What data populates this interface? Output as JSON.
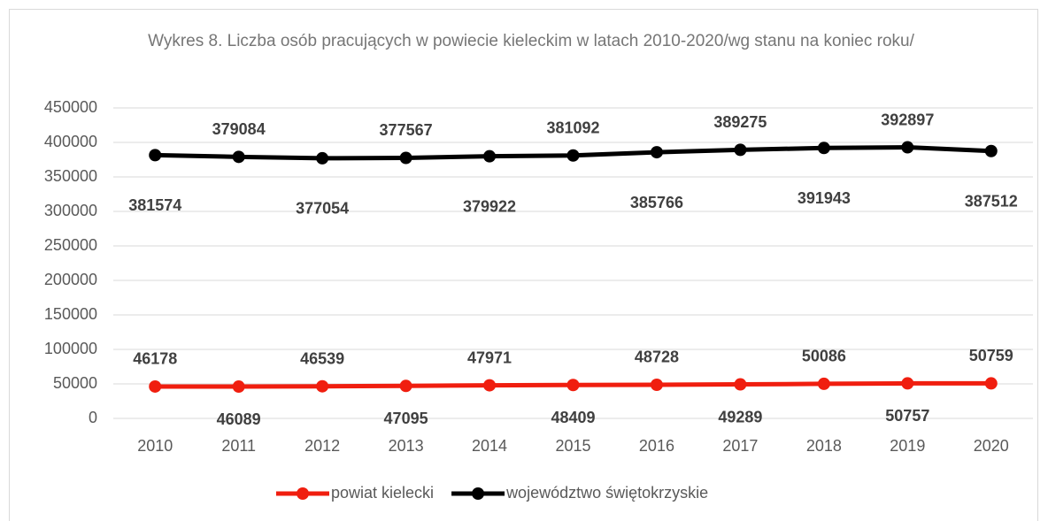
{
  "chart_data": {
    "type": "line",
    "title": "Wykres 8. Liczba osób pracujących w powiecie kieleckim w latach 2010-2020/wg stanu na koniec roku/",
    "categories": [
      "2010",
      "2011",
      "2012",
      "2013",
      "2014",
      "2015",
      "2016",
      "2017",
      "2018",
      "2019",
      "2020"
    ],
    "series": [
      {
        "name": "powiat kielecki",
        "color": "#f01e0f",
        "values": [
          46178,
          46089,
          46539,
          47095,
          47971,
          48409,
          48728,
          49289,
          50086,
          50757,
          50759
        ]
      },
      {
        "name": "województwo świętokrzyskie",
        "color": "#000000",
        "values": [
          381574,
          379084,
          377054,
          377567,
          379922,
          381092,
          385766,
          389275,
          391943,
          392897,
          387512
        ]
      }
    ],
    "ylim": [
      0,
      450000
    ],
    "yticks": [
      0,
      50000,
      100000,
      150000,
      200000,
      250000,
      300000,
      350000,
      400000,
      450000
    ],
    "grid": true,
    "legend": "bottom"
  }
}
